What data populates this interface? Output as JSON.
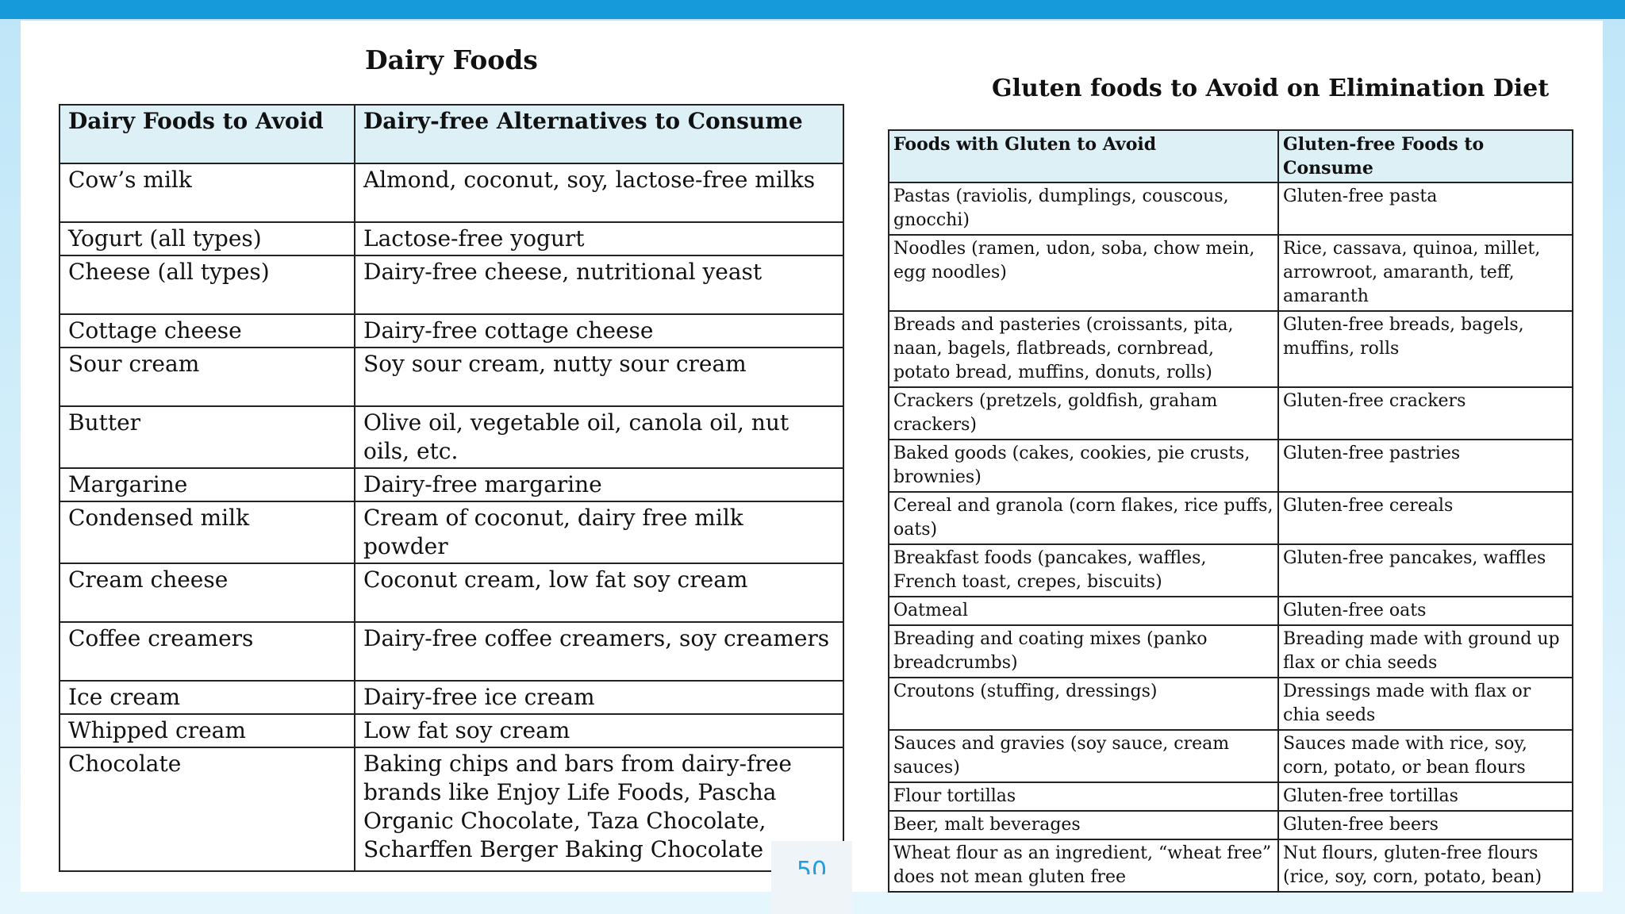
{
  "page_number": "50",
  "dairy": {
    "title": "Dairy Foods",
    "headers": [
      "Dairy Foods to Avoid",
      "Dairy-free Alternatives to Consume"
    ],
    "rows": [
      {
        "avoid": "Cow’s milk",
        "alternative": "Almond, coconut, soy, lactose-free milks"
      },
      {
        "avoid": "Yogurt (all types)",
        "alternative": "Lactose-free yogurt"
      },
      {
        "avoid": "Cheese (all types)",
        "alternative": "Dairy-free cheese, nutritional yeast"
      },
      {
        "avoid": "Cottage cheese",
        "alternative": "Dairy-free cottage cheese"
      },
      {
        "avoid": "Sour cream",
        "alternative": "Soy sour cream, nutty sour cream"
      },
      {
        "avoid": "Butter",
        "alternative": "Olive oil, vegetable oil, canola oil, nut oils, etc."
      },
      {
        "avoid": "Margarine",
        "alternative": "Dairy-free margarine"
      },
      {
        "avoid": "Condensed milk",
        "alternative": "Cream of coconut, dairy free milk powder"
      },
      {
        "avoid": "Cream cheese",
        "alternative": "Coconut cream, low fat soy cream"
      },
      {
        "avoid": "Coffee creamers",
        "alternative": "Dairy-free coffee creamers, soy creamers"
      },
      {
        "avoid": "Ice cream",
        "alternative": "Dairy-free ice cream"
      },
      {
        "avoid": "Whipped cream",
        "alternative": "Low fat soy cream"
      },
      {
        "avoid": "Chocolate",
        "alternative": "Baking chips and bars from dairy-free brands like Enjoy Life Foods, Pascha Organic Chocolate, Taza Chocolate, Scharffen Berger Baking Chocolate"
      }
    ]
  },
  "gluten": {
    "title": "Gluten foods to Avoid on Elimination Diet",
    "headers": [
      "Foods with Gluten to Avoid",
      "Gluten-free Foods to Consume"
    ],
    "rows": [
      {
        "avoid": "Pastas (raviolis, dumplings, couscous, gnocchi)",
        "consume": "Gluten-free pasta"
      },
      {
        "avoid": "Noodles (ramen, udon, soba, chow mein, egg noodles)",
        "consume": "Rice, cassava, quinoa, millet, arrowroot, amaranth, teff, amaranth"
      },
      {
        "avoid": "Breads and pasteries (croissants, pita, naan, bagels, flatbreads, cornbread, potato bread, muffins, donuts, rolls)",
        "consume": "Gluten-free breads, bagels, muffins, rolls"
      },
      {
        "avoid": "Crackers (pretzels, goldfish, graham crackers)",
        "consume": "Gluten-free crackers"
      },
      {
        "avoid": "Baked goods (cakes, cookies, pie crusts, brownies)",
        "consume": "Gluten-free pastries"
      },
      {
        "avoid": "Cereal and granola (corn flakes, rice puffs, oats)",
        "consume": "Gluten-free cereals"
      },
      {
        "avoid": "Breakfast foods (pancakes, waffles, French toast, crepes, biscuits)",
        "consume": "Gluten-free pancakes, waffles"
      },
      {
        "avoid": "Oatmeal",
        "consume": "Gluten-free oats"
      },
      {
        "avoid": "Breading and coating mixes (panko breadcrumbs)",
        "consume": "Breading made with ground up flax or chia seeds"
      },
      {
        "avoid": "Croutons (stuffing, dressings)",
        "consume": "Dressings made with flax or chia seeds"
      },
      {
        "avoid": "Sauces and gravies (soy sauce, cream sauces)",
        "consume": "Sauces made with rice, soy, corn, potato, or bean flours"
      },
      {
        "avoid": "Flour tortillas",
        "consume": "Gluten-free tortillas"
      },
      {
        "avoid": "Beer, malt beverages",
        "consume": "Gluten-free beers"
      },
      {
        "avoid": "Wheat flour as an ingredient, “wheat free” does not mean gluten free",
        "consume": "Nut flours, gluten-free flours (rice, soy, corn, potato, bean)"
      }
    ]
  }
}
